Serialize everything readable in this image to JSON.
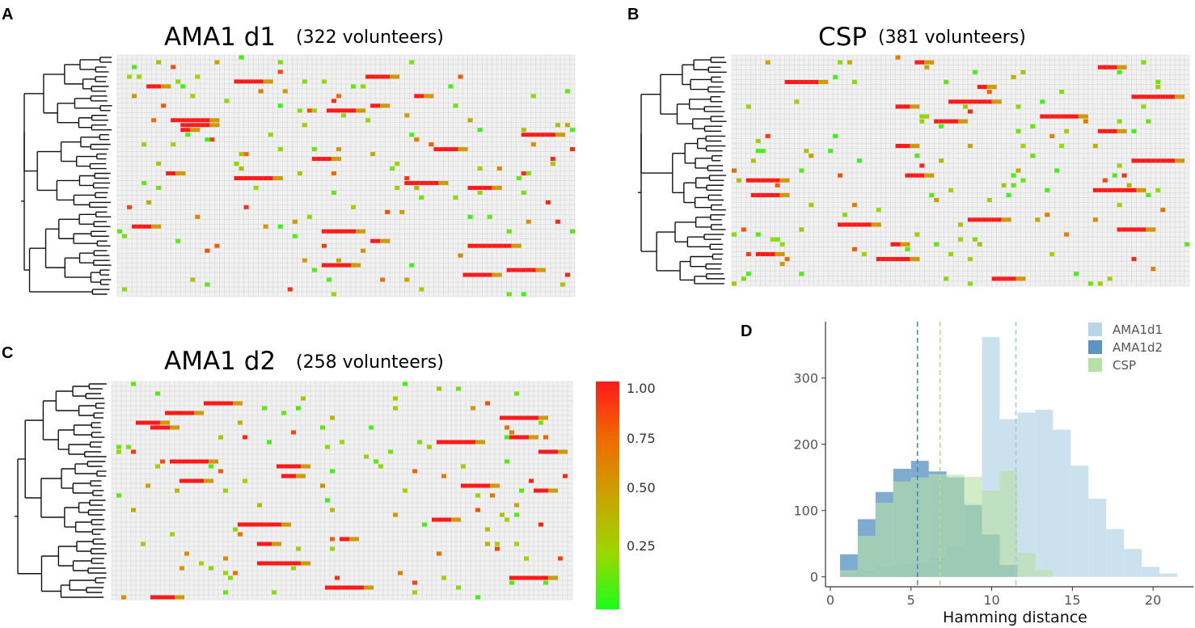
{
  "chart_data": [
    {
      "panel": "A",
      "type": "heatmap",
      "title": "AMA1 d1",
      "subtitle": "(322 volunteers)",
      "rows": 50,
      "columns": 94,
      "value_range": [
        0,
        1
      ],
      "description_note": "hierarchically clustered haplotype x volunteer heatmap with dendrogram on left",
      "seed": 11
    },
    {
      "panel": "B",
      "type": "heatmap",
      "title": "CSP",
      "subtitle": "(381 volunteers)",
      "rows": 47,
      "columns": 95,
      "value_range": [
        0,
        1
      ],
      "seed": 23
    },
    {
      "panel": "C",
      "type": "heatmap",
      "title": "AMA1 d2",
      "subtitle": "(258 volunteers)",
      "rows": 45,
      "columns": 95,
      "value_range": [
        0,
        1
      ],
      "seed": 37,
      "colorbar": {
        "ticks": [
          "1.00",
          "0.75",
          "0.50",
          "0.25"
        ],
        "colors": [
          "#ff1a1a",
          "#f06a00",
          "#c9a300",
          "#9ed600",
          "#1aff1a"
        ]
      }
    },
    {
      "panel": "D",
      "type": "bar",
      "subtype": "overlaid histogram",
      "xlabel": "Hamming distance",
      "ylabel": "",
      "xlim": [
        -0.3,
        22.5
      ],
      "ylim": [
        -15,
        385
      ],
      "xticks": [
        "0",
        "5",
        "10",
        "15",
        "20"
      ],
      "yticks": [
        "0",
        "100",
        "200",
        "300"
      ],
      "bin_width": 1.1,
      "series": [
        {
          "name": "AMA1d1",
          "color": "#b9d6e8",
          "bin_starts": [
            0.6,
            1.7,
            2.8,
            3.9,
            5.0,
            6.1,
            7.2,
            8.3,
            9.4,
            10.5,
            11.6,
            12.7,
            13.8,
            14.9,
            16.0,
            17.1,
            18.2,
            19.3,
            20.4
          ],
          "values": [
            5,
            10,
            15,
            18,
            22,
            30,
            45,
            110,
            362,
            238,
            248,
            252,
            222,
            168,
            118,
            72,
            42,
            15,
            5
          ],
          "mean_line": 11.5
        },
        {
          "name": "AMA1d2",
          "color": "#5b93c3",
          "bin_starts": [
            0.6,
            1.7,
            2.8,
            3.9,
            5.0,
            6.1,
            7.2,
            8.3,
            9.4,
            10.5
          ],
          "values": [
            34,
            87,
            128,
            163,
            175,
            159,
            150,
            108,
            64,
            18
          ],
          "mean_line": 5.4
        },
        {
          "name": "CSP",
          "color": "#b7e1a6",
          "bin_starts": [
            0.6,
            1.7,
            2.8,
            3.9,
            5.0,
            6.1,
            7.2,
            8.3,
            9.4,
            10.5,
            11.6,
            12.7
          ],
          "values": [
            10,
            62,
            112,
            144,
            150,
            155,
            154,
            151,
            130,
            160,
            36,
            10
          ],
          "mean_line": 6.8
        }
      ]
    }
  ],
  "panel_labels": [
    "A",
    "B",
    "C",
    "D"
  ]
}
